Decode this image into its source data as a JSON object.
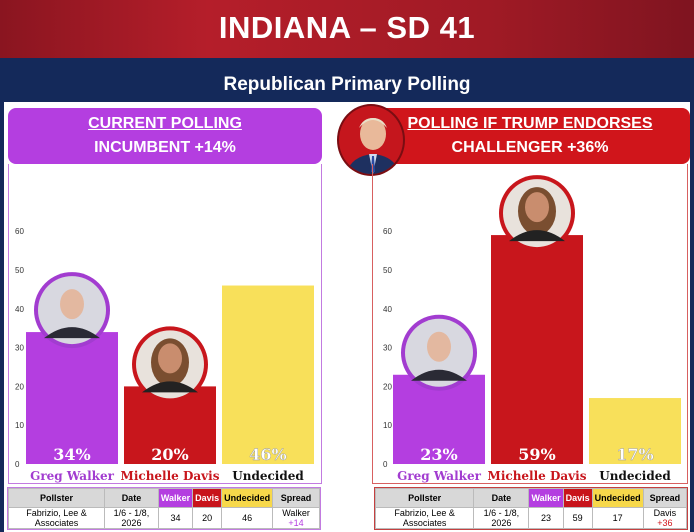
{
  "title": "INDIANA – SD 41",
  "subtitle": "Republican Primary Polling",
  "colors": {
    "walker": "#b43ee0",
    "davis": "#c8161c",
    "undecided": "#f8e05a"
  },
  "left_panel": {
    "heading": "CURRENT POLLING",
    "subheading": "INCUMBENT +14%"
  },
  "right_panel": {
    "heading": "POLLING IF TRUMP ENDORSES",
    "subheading": "CHALLENGER +36%"
  },
  "chart_data": [
    {
      "type": "bar",
      "categories": [
        "Greg Walker",
        "Michelle Davis",
        "Undecided"
      ],
      "values": [
        34,
        20,
        46
      ],
      "data_labels": [
        "34%",
        "20%",
        "46%"
      ],
      "yticks": [
        0,
        10,
        20,
        30,
        40,
        50,
        60
      ],
      "ylim": [
        0,
        65
      ],
      "grid": false
    },
    {
      "type": "bar",
      "categories": [
        "Greg Walker",
        "Michelle Davis",
        "Undecided"
      ],
      "values": [
        23,
        59,
        17
      ],
      "data_labels": [
        "23%",
        "59%",
        "17%"
      ],
      "yticks": [
        0,
        10,
        20,
        30,
        40,
        50,
        60
      ],
      "ylim": [
        0,
        65
      ],
      "grid": false
    }
  ],
  "tables": [
    {
      "headers": [
        "Pollster",
        "Date",
        "Walker",
        "Davis",
        "Undecided",
        "Spread"
      ],
      "row": [
        "Fabrizio, Lee & Associates",
        "1/6 - 1/8, 2026",
        "34",
        "20",
        "46"
      ],
      "spread_name": "Walker",
      "spread_value": "+14"
    },
    {
      "headers": [
        "Pollster",
        "Date",
        "Walker",
        "Davis",
        "Undecided",
        "Spread"
      ],
      "row": [
        "Fabrizio, Lee & Associates",
        "1/6 - 1/8, 2026",
        "23",
        "59",
        "17"
      ],
      "spread_name": "Davis",
      "spread_value": "+36"
    }
  ]
}
